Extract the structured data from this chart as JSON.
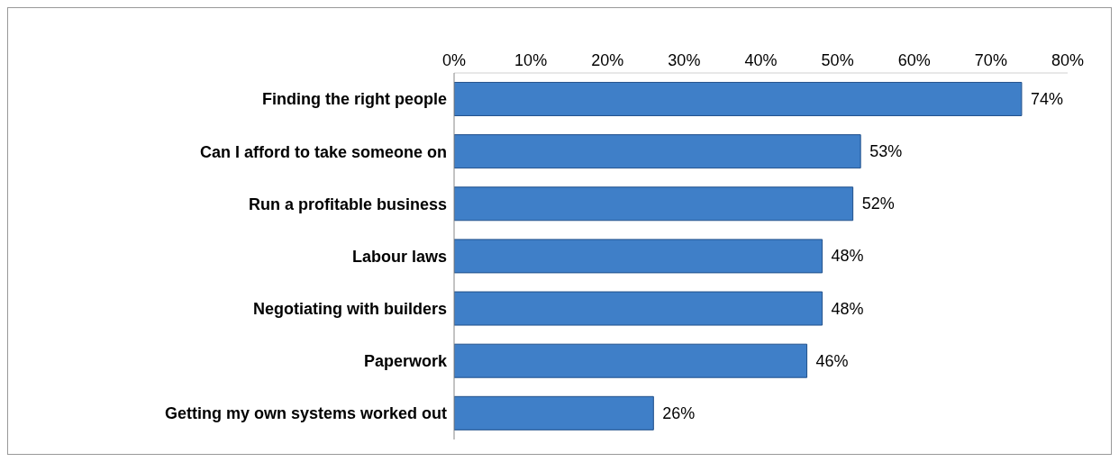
{
  "chart_data": {
    "type": "bar",
    "orientation": "horizontal",
    "categories": [
      "Finding the right people",
      "Can I afford to take someone on",
      "Run a profitable business",
      "Labour laws",
      "Negotiating with builders",
      "Paperwork",
      "Getting my own systems worked out"
    ],
    "values": [
      74,
      53,
      52,
      48,
      48,
      46,
      26
    ],
    "value_labels": [
      "74%",
      "53%",
      "52%",
      "48%",
      "48%",
      "46%",
      "26%"
    ],
    "color": "#3f7fc8",
    "xlim": [
      0,
      80
    ],
    "xticks": [
      {
        "value": 0,
        "label": "0%"
      },
      {
        "value": 10,
        "label": "10%"
      },
      {
        "value": 20,
        "label": "20%"
      },
      {
        "value": 30,
        "label": "30%"
      },
      {
        "value": 40,
        "label": "40%"
      },
      {
        "value": 50,
        "label": "50%"
      },
      {
        "value": 60,
        "label": "60%"
      },
      {
        "value": 70,
        "label": "70%"
      },
      {
        "value": 80,
        "label": "80%"
      }
    ]
  }
}
